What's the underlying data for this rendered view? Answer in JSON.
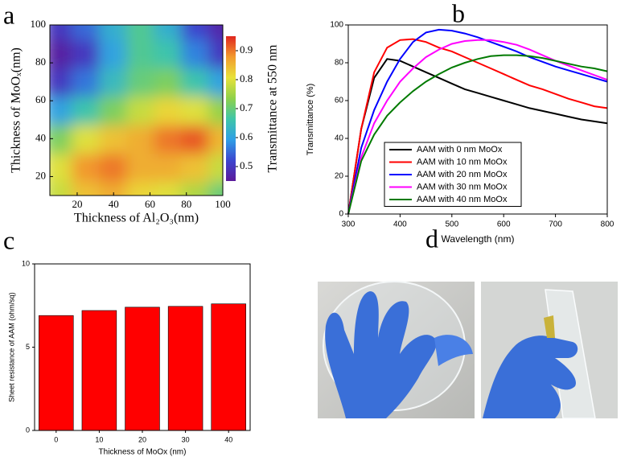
{
  "chart_data": [
    {
      "type": "heatmap",
      "panel_label": "a",
      "xlabel": "Thickness of Al₂O₃(nm)",
      "ylabel": "Thickness of MoOₓ(nm)",
      "colorbar_label": "Transmittance at 550 nm",
      "x": [
        10,
        25,
        40,
        55,
        70,
        85,
        100
      ],
      "y": [
        10,
        25,
        40,
        55,
        70,
        85,
        100
      ],
      "z": [
        [
          0.78,
          0.84,
          0.86,
          0.82,
          0.8,
          0.76,
          0.7
        ],
        [
          0.8,
          0.88,
          0.9,
          0.86,
          0.86,
          0.84,
          0.78
        ],
        [
          0.72,
          0.8,
          0.84,
          0.86,
          0.9,
          0.92,
          0.85
        ],
        [
          0.6,
          0.66,
          0.72,
          0.78,
          0.82,
          0.8,
          0.74
        ],
        [
          0.5,
          0.56,
          0.64,
          0.7,
          0.72,
          0.66,
          0.6
        ],
        [
          0.46,
          0.5,
          0.6,
          0.68,
          0.66,
          0.57,
          0.5
        ],
        [
          0.5,
          0.55,
          0.62,
          0.68,
          0.62,
          0.52,
          0.47
        ]
      ],
      "xlim": [
        5,
        100
      ],
      "ylim": [
        10,
        100
      ],
      "xticks": [
        20,
        40,
        60,
        80,
        100
      ],
      "yticks": [
        20,
        40,
        60,
        80,
        100
      ],
      "clim": [
        0.45,
        0.95
      ],
      "cticks": [
        0.5,
        0.6,
        0.7,
        0.8,
        0.9
      ],
      "colormap": [
        "#5b1a9a",
        "#3c46cf",
        "#2f9fe6",
        "#3fc6a8",
        "#8fd14a",
        "#e8e23a",
        "#f29a2e",
        "#e0251e"
      ]
    },
    {
      "type": "line",
      "panel_label": "b",
      "xlabel": "Wavelength (nm)",
      "ylabel": "Transmittance (%)",
      "x": [
        300,
        325,
        350,
        375,
        400,
        425,
        450,
        475,
        500,
        525,
        550,
        575,
        600,
        625,
        650,
        675,
        700,
        725,
        750,
        775,
        800
      ],
      "series": [
        {
          "name": "AAM with 0 nm MoOx",
          "color": "#000000",
          "values": [
            0,
            45,
            72,
            82,
            81,
            78,
            75,
            72,
            69,
            66,
            64,
            62,
            60,
            58,
            56,
            54.5,
            53,
            51.5,
            50,
            49,
            48
          ]
        },
        {
          "name": "AAM with 10 nm MoOx",
          "color": "#ff0000",
          "values": [
            0,
            45,
            75,
            88,
            92,
            92.5,
            91,
            88,
            86,
            83,
            80,
            77,
            74,
            71,
            68,
            66,
            63.5,
            61,
            59,
            57,
            56
          ]
        },
        {
          "name": "AAM with 20 nm MoOx",
          "color": "#0000ff",
          "values": [
            0,
            35,
            55,
            70,
            82,
            91,
            96,
            97.5,
            97,
            95.5,
            93.5,
            91,
            88.5,
            86,
            83,
            80.5,
            78,
            76,
            74,
            72,
            70
          ]
        },
        {
          "name": "AAM with 30 nm MoOx",
          "color": "#ff00ff",
          "values": [
            0,
            30,
            48,
            60,
            70,
            77,
            83,
            87,
            90,
            91.5,
            92,
            92,
            91,
            89.5,
            87,
            84,
            81,
            78.5,
            76,
            73.5,
            71
          ]
        },
        {
          "name": "AAM with 40 nm MoOx",
          "color": "#007a00",
          "values": [
            0,
            28,
            42,
            52,
            59,
            65,
            70,
            74,
            77.5,
            80,
            82,
            83.5,
            84,
            84,
            83.5,
            82.5,
            81,
            79.5,
            78,
            77,
            75.5
          ]
        }
      ],
      "xlim": [
        300,
        800
      ],
      "ylim": [
        0,
        100
      ],
      "xticks": [
        300,
        400,
        500,
        600,
        700,
        800
      ],
      "yticks": [
        0,
        20,
        40,
        60,
        80,
        100
      ]
    },
    {
      "type": "bar",
      "panel_label": "c",
      "xlabel": "Thickness of MoOx (nm)",
      "ylabel": "Sheet resistance of AAM (ohm/sq)",
      "categories": [
        "0",
        "10",
        "20",
        "30",
        "40"
      ],
      "values": [
        6.9,
        7.2,
        7.4,
        7.45,
        7.6
      ],
      "color": "#ff0000",
      "ylim": [
        0,
        10
      ],
      "yticks": [
        0,
        5,
        10
      ]
    },
    {
      "type": "photo",
      "panel_label": "d"
    }
  ]
}
